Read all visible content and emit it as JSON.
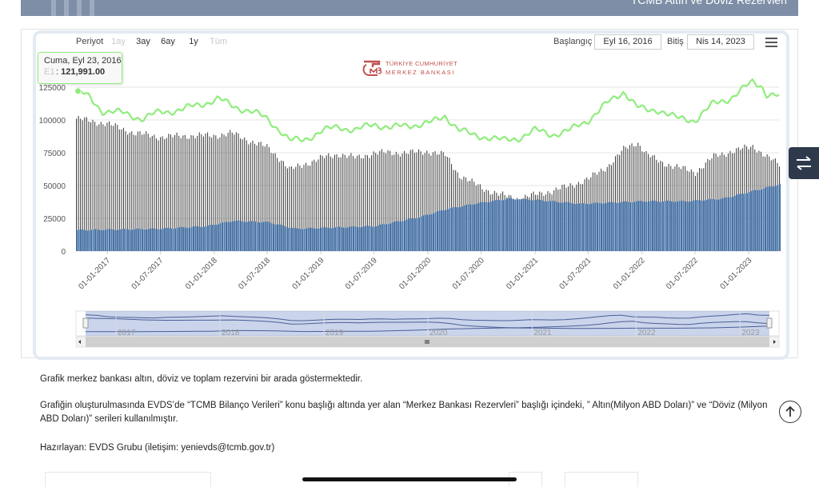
{
  "header": {
    "title": "TCMB Altın ve Döviz Rezervleri"
  },
  "toolbar": {
    "period_label": "Periyot",
    "periods": [
      "1ay",
      "3ay",
      "6ay",
      "1y",
      "Tüm"
    ],
    "start_label": "Başlangıç",
    "start_value": "Eyl 16, 2016",
    "end_label": "Bitiş",
    "end_value": "Nis 14, 2023",
    "menu_icon": "hamburger-menu-icon"
  },
  "logo": {
    "monogram": "TCMB",
    "line1": "TÜRKİYE CUMHURİYET",
    "line2": "MERKEZ BANKASI"
  },
  "tooltip": {
    "date": "Cuma, Eyl 23, 2016",
    "series": "E1",
    "value": "121,991.00"
  },
  "chart_data": {
    "type": "bar+line",
    "ylim": [
      0,
      125000
    ],
    "yticks": [
      "125000",
      "100000",
      "75000",
      "50000",
      "25000",
      "0"
    ],
    "xticks": [
      "01-01-2017",
      "01-07-2017",
      "01-01-2018",
      "01-07-2018",
      "01-01-2019",
      "01-07-2019",
      "01-01-2020",
      "01-07-2020",
      "01-01-2021",
      "01-07-2021",
      "01-01-2022",
      "01-07-2022",
      "01-01-2023"
    ],
    "x_range": [
      "2016-09-16",
      "2023-04-14"
    ],
    "navigator_labels": [
      "2017",
      "2018",
      "2019",
      "2020",
      "2021",
      "2022",
      "2023"
    ],
    "grid": true,
    "series": [
      {
        "kind": "line",
        "color": "#90ed7d",
        "points": [
          [
            "2016-09-23",
            121991
          ],
          [
            "2016-11-01",
            117000
          ],
          [
            "2016-12-15",
            107000
          ],
          [
            "2017-03-01",
            105000
          ],
          [
            "2017-05-01",
            101000
          ],
          [
            "2017-07-01",
            106000
          ],
          [
            "2017-09-15",
            108000
          ],
          [
            "2017-11-15",
            112000
          ],
          [
            "2018-01-15",
            116000
          ],
          [
            "2018-03-01",
            111000
          ],
          [
            "2018-05-01",
            107000
          ],
          [
            "2018-07-01",
            101000
          ],
          [
            "2018-08-15",
            92000
          ],
          [
            "2018-09-15",
            84000
          ],
          [
            "2018-11-01",
            85000
          ],
          [
            "2019-01-01",
            91000
          ],
          [
            "2019-03-01",
            95000
          ],
          [
            "2019-05-01",
            92000
          ],
          [
            "2019-07-01",
            97000
          ],
          [
            "2019-09-01",
            94000
          ],
          [
            "2019-11-01",
            96000
          ],
          [
            "2020-01-15",
            98000
          ],
          [
            "2020-03-01",
            103000
          ],
          [
            "2020-04-15",
            93000
          ],
          [
            "2020-06-01",
            88000
          ],
          [
            "2020-08-01",
            87000
          ],
          [
            "2020-09-15",
            84000
          ],
          [
            "2020-11-01",
            86000
          ],
          [
            "2021-01-01",
            92000
          ],
          [
            "2021-03-01",
            89000
          ],
          [
            "2021-05-01",
            92000
          ],
          [
            "2021-07-01",
            100000
          ],
          [
            "2021-09-01",
            112000
          ],
          [
            "2021-11-01",
            122000
          ],
          [
            "2021-12-15",
            110000
          ],
          [
            "2022-01-15",
            107000
          ],
          [
            "2022-03-01",
            108000
          ],
          [
            "2022-05-01",
            101000
          ],
          [
            "2022-07-01",
            100000
          ],
          [
            "2022-09-01",
            112000
          ],
          [
            "2022-11-01",
            117000
          ],
          [
            "2023-01-15",
            129000
          ],
          [
            "2023-02-15",
            126000
          ],
          [
            "2023-03-01",
            120000
          ],
          [
            "2023-04-14",
            118000
          ]
        ]
      },
      {
        "kind": "bar",
        "name": "Döviz",
        "color": "#444444",
        "points": [
          [
            "2016-09-16",
            101000
          ],
          [
            "2017-01-01",
            97000
          ],
          [
            "2017-04-01",
            90000
          ],
          [
            "2017-07-01",
            87000
          ],
          [
            "2017-10-01",
            88000
          ],
          [
            "2018-01-01",
            88000
          ],
          [
            "2018-03-01",
            90000
          ],
          [
            "2018-05-01",
            84000
          ],
          [
            "2018-07-01",
            79000
          ],
          [
            "2018-08-15",
            70000
          ],
          [
            "2018-09-15",
            62000
          ],
          [
            "2018-11-01",
            66000
          ],
          [
            "2019-01-01",
            71000
          ],
          [
            "2019-03-01",
            74000
          ],
          [
            "2019-05-01",
            71000
          ],
          [
            "2019-07-01",
            75000
          ],
          [
            "2019-09-01",
            75000
          ],
          [
            "2019-11-01",
            75000
          ],
          [
            "2020-01-01",
            76000
          ],
          [
            "2020-03-01",
            73000
          ],
          [
            "2020-04-15",
            58000
          ],
          [
            "2020-06-01",
            52000
          ],
          [
            "2020-07-15",
            47000
          ],
          [
            "2020-09-01",
            43000
          ],
          [
            "2020-11-01",
            40000
          ],
          [
            "2021-01-01",
            43000
          ],
          [
            "2021-03-01",
            46000
          ],
          [
            "2021-05-01",
            50000
          ],
          [
            "2021-07-01",
            55000
          ],
          [
            "2021-09-01",
            64000
          ],
          [
            "2021-11-01",
            78000
          ],
          [
            "2021-12-15",
            83000
          ],
          [
            "2022-01-15",
            74000
          ],
          [
            "2022-03-01",
            68000
          ],
          [
            "2022-05-01",
            64000
          ],
          [
            "2022-07-01",
            60000
          ],
          [
            "2022-09-01",
            72000
          ],
          [
            "2022-11-01",
            76000
          ],
          [
            "2023-01-15",
            80000
          ],
          [
            "2023-03-01",
            72000
          ],
          [
            "2023-04-14",
            66000
          ]
        ]
      },
      {
        "kind": "bar",
        "name": "Altın",
        "color": "#4572a7",
        "points": [
          [
            "2016-09-16",
            16000
          ],
          [
            "2017-07-01",
            17000
          ],
          [
            "2017-12-01",
            19000
          ],
          [
            "2018-03-01",
            23000
          ],
          [
            "2018-07-01",
            22000
          ],
          [
            "2018-10-01",
            17000
          ],
          [
            "2019-07-01",
            19000
          ],
          [
            "2019-12-01",
            26000
          ],
          [
            "2020-03-01",
            32000
          ],
          [
            "2020-06-01",
            36000
          ],
          [
            "2020-10-01",
            40000
          ],
          [
            "2021-01-01",
            39000
          ],
          [
            "2021-06-01",
            36000
          ],
          [
            "2022-01-01",
            38000
          ],
          [
            "2022-06-01",
            38000
          ],
          [
            "2022-10-01",
            40000
          ],
          [
            "2023-01-15",
            46000
          ],
          [
            "2023-04-14",
            51000
          ]
        ]
      }
    ]
  },
  "description": {
    "p1": "Grafik merkez bankası altın, döviz ve toplam rezervini bir arada göstermektedir.",
    "p2": "Grafiğin oluşturulmasında EVDS’de “TCMB Bilanço Verileri” konu başlığı altında yer alan “Merkez Bankası Rezervleri” başlığı içindeki, ” Altın(Milyon ABD Doları)” ve “Döviz (Milyon ABD Doları)” serileri kullanılmıştır.",
    "p3": "Hazırlayan: EVDS Grubu  (iletişim: yenievds@tcmb.gov.tr)"
  },
  "icons": {
    "side_toggle": "swap-arrows-icon",
    "scroll_top": "arrow-up-circle-icon"
  }
}
